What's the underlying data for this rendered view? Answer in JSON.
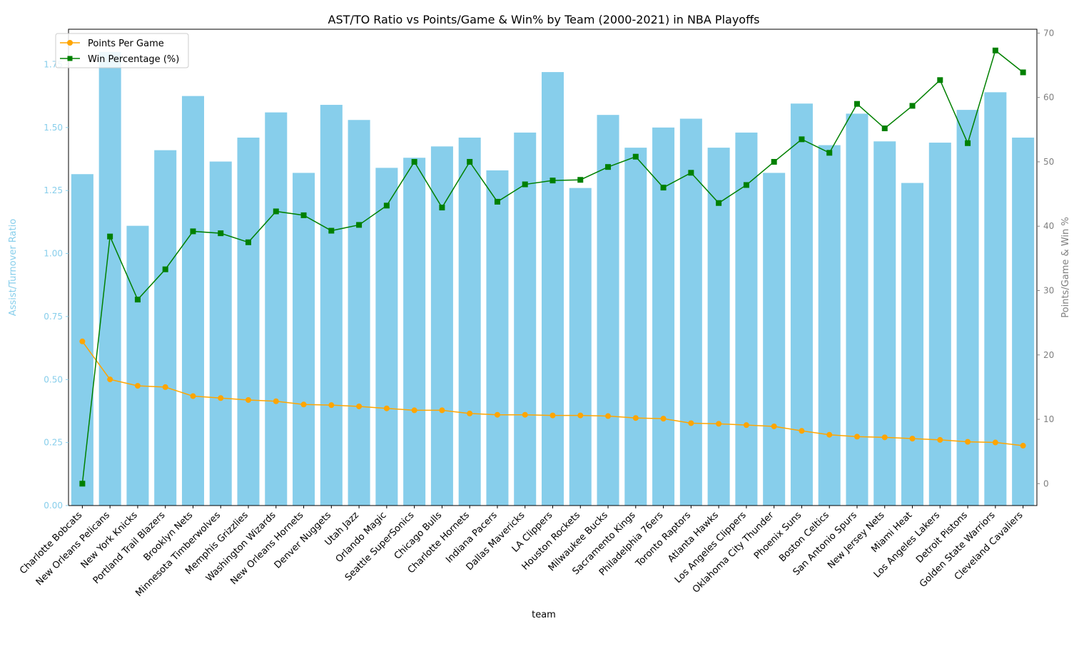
{
  "chart_data": {
    "type": "bar",
    "title": "AST/TO Ratio vs Points/Game & Win% by Team (2000-2021) in NBA Playoffs",
    "xlabel": "team",
    "ylabel": "Assist/Turnover Ratio",
    "y2label": "Points/Game & Win %",
    "ylim": [
      0,
      1.89
    ],
    "y2lim": [
      -3.4,
      70.6
    ],
    "yticks": [
      "0.00",
      "0.25",
      "0.50",
      "0.75",
      "1.00",
      "1.25",
      "1.50",
      "1.75"
    ],
    "y2ticks": [
      "0",
      "10",
      "20",
      "30",
      "40",
      "50",
      "60",
      "70"
    ],
    "legend_position": "top-left",
    "grid": false,
    "colors": {
      "bars": "#87ceeb",
      "points_per_game": "#ffa500",
      "win_percentage": "#008000",
      "left_axis": "#87ceeb",
      "right_axis": "#808080"
    },
    "categories": [
      "Charlotte Bobcats",
      "New Orleans Pelicans",
      "New York Knicks",
      "Portland Trail Blazers",
      "Brooklyn Nets",
      "Minnesota Timberwolves",
      "Memphis Grizzlies",
      "Washington Wizards",
      "New Orleans Hornets",
      "Denver Nuggets",
      "Utah Jazz",
      "Orlando Magic",
      "Seattle SuperSonics",
      "Chicago Bulls",
      "Charlotte Hornets",
      "Indiana Pacers",
      "Dallas Mavericks",
      "LA Clippers",
      "Houston Rockets",
      "Milwaukee Bucks",
      "Sacramento Kings",
      "Philadelphia 76ers",
      "Toronto Raptors",
      "Atlanta Hawks",
      "Los Angeles Clippers",
      "Oklahoma City Thunder",
      "Phoenix Suns",
      "Boston Celtics",
      "San Antonio Spurs",
      "New Jersey Nets",
      "Miami Heat",
      "Los Angeles Lakers",
      "Detroit Pistons",
      "Golden State Warriors",
      "Cleveland Cavaliers"
    ],
    "values": [
      1.315,
      1.8,
      1.11,
      1.41,
      1.625,
      1.365,
      1.46,
      1.56,
      1.32,
      1.59,
      1.53,
      1.34,
      1.38,
      1.425,
      1.46,
      1.33,
      1.48,
      1.72,
      1.26,
      1.55,
      1.42,
      1.5,
      1.535,
      1.42,
      1.48,
      1.32,
      1.595,
      1.43,
      1.555,
      1.445,
      1.28,
      1.44,
      1.57,
      1.64,
      1.46
    ],
    "series": [
      {
        "name": "Points Per Game",
        "axis": "right",
        "marker": "circle",
        "values": [
          22.1,
          16.2,
          15.2,
          15.0,
          13.6,
          13.3,
          13.0,
          12.8,
          12.3,
          12.2,
          12.0,
          11.7,
          11.4,
          11.4,
          10.9,
          10.7,
          10.7,
          10.6,
          10.6,
          10.5,
          10.2,
          10.1,
          9.4,
          9.3,
          9.1,
          8.9,
          8.2,
          7.6,
          7.3,
          7.2,
          7.0,
          6.8,
          6.5,
          6.4,
          5.9
        ]
      },
      {
        "name": "Win Percentage (%)",
        "axis": "right",
        "marker": "square",
        "values": [
          0.0,
          38.4,
          28.6,
          33.3,
          39.2,
          38.9,
          37.5,
          42.3,
          41.7,
          39.3,
          40.2,
          43.2,
          50.0,
          42.9,
          50.0,
          43.8,
          46.5,
          47.1,
          47.2,
          49.2,
          50.8,
          46.0,
          48.3,
          43.6,
          46.4,
          50.0,
          53.5,
          51.4,
          59.0,
          55.2,
          58.7,
          62.7,
          52.9,
          67.3,
          63.9
        ]
      }
    ]
  }
}
